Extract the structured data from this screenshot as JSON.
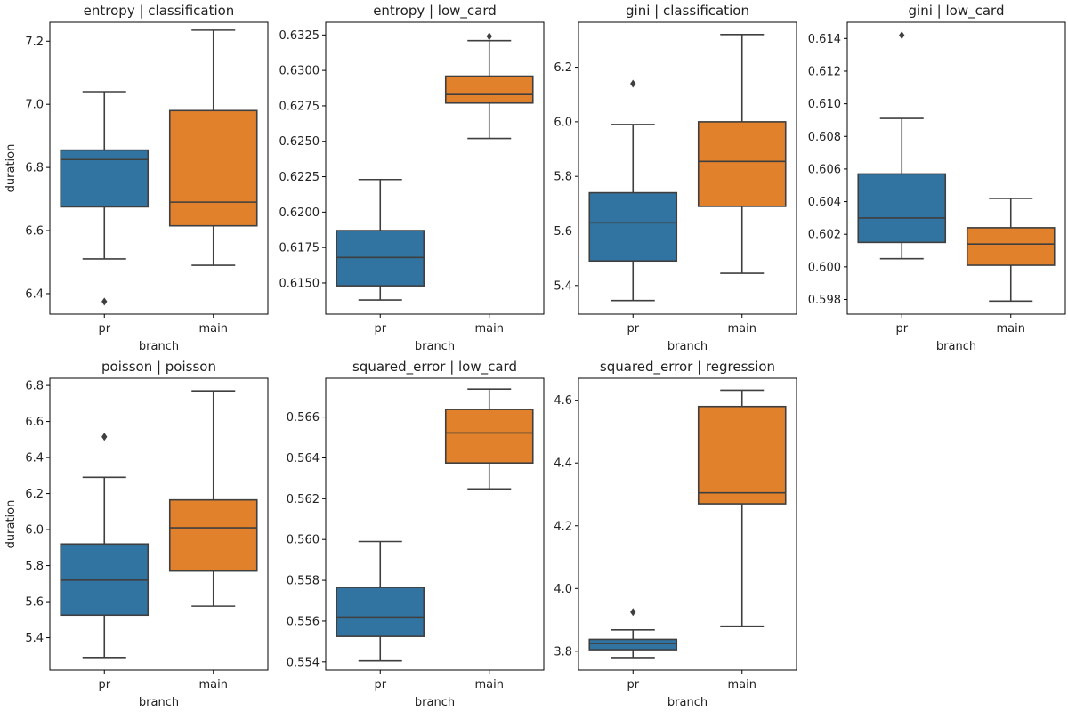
{
  "colors": {
    "pr": "#3274a1",
    "main": "#e1812c",
    "line": "#3f3f3f"
  },
  "chart_data": [
    {
      "type": "box",
      "title": "entropy | classification",
      "xlabel": "branch",
      "ylabel": "duration",
      "categories": [
        "pr",
        "main"
      ],
      "ylim": [
        6.335,
        7.26
      ],
      "yticks": [
        6.4,
        6.6,
        6.8,
        7.0,
        7.2
      ],
      "ytick_labels": [
        "6.4",
        "6.6",
        "6.8",
        "7.0",
        "7.2"
      ],
      "boxes": [
        {
          "name": "pr",
          "whislo": 6.51,
          "q1": 6.675,
          "med": 6.825,
          "q3": 6.855,
          "whishi": 7.04,
          "fliers": [
            6.375
          ]
        },
        {
          "name": "main",
          "whislo": 6.49,
          "q1": 6.615,
          "med": 6.69,
          "q3": 6.98,
          "whishi": 7.235,
          "fliers": []
        }
      ]
    },
    {
      "type": "box",
      "title": "entropy | low_card",
      "xlabel": "branch",
      "ylabel": "",
      "categories": [
        "pr",
        "main"
      ],
      "ylim": [
        0.6128,
        0.6334
      ],
      "yticks": [
        0.615,
        0.6175,
        0.62,
        0.6225,
        0.625,
        0.6275,
        0.63,
        0.6325
      ],
      "ytick_labels": [
        "0.6150",
        "0.6175",
        "0.6200",
        "0.6225",
        "0.6250",
        "0.6275",
        "0.6300",
        "0.6325"
      ],
      "boxes": [
        {
          "name": "pr",
          "whislo": 0.6138,
          "q1": 0.6148,
          "med": 0.6168,
          "q3": 0.6187,
          "whishi": 0.6223,
          "fliers": []
        },
        {
          "name": "main",
          "whislo": 0.6252,
          "q1": 0.6277,
          "med": 0.6283,
          "q3": 0.6296,
          "whishi": 0.6321,
          "fliers": [
            0.6324
          ]
        }
      ]
    },
    {
      "type": "box",
      "title": "gini | classification",
      "xlabel": "branch",
      "ylabel": "",
      "categories": [
        "pr",
        "main"
      ],
      "ylim": [
        5.295,
        6.365
      ],
      "yticks": [
        5.4,
        5.6,
        5.8,
        6.0,
        6.2
      ],
      "ytick_labels": [
        "5.4",
        "5.6",
        "5.8",
        "6.0",
        "6.2"
      ],
      "boxes": [
        {
          "name": "pr",
          "whislo": 5.345,
          "q1": 5.49,
          "med": 5.63,
          "q3": 5.74,
          "whishi": 5.99,
          "fliers": [
            6.14
          ]
        },
        {
          "name": "main",
          "whislo": 5.445,
          "q1": 5.69,
          "med": 5.855,
          "q3": 6.0,
          "whishi": 6.32,
          "fliers": []
        }
      ]
    },
    {
      "type": "box",
      "title": "gini | low_card",
      "xlabel": "branch",
      "ylabel": "",
      "categories": [
        "pr",
        "main"
      ],
      "ylim": [
        0.5971,
        0.615
      ],
      "yticks": [
        0.598,
        0.6,
        0.602,
        0.604,
        0.606,
        0.608,
        0.61,
        0.612,
        0.614
      ],
      "ytick_labels": [
        "0.598",
        "0.600",
        "0.602",
        "0.604",
        "0.606",
        "0.608",
        "0.610",
        "0.612",
        "0.614"
      ],
      "boxes": [
        {
          "name": "pr",
          "whislo": 0.6005,
          "q1": 0.6015,
          "med": 0.603,
          "q3": 0.6057,
          "whishi": 0.6091,
          "fliers": [
            0.6142
          ]
        },
        {
          "name": "main",
          "whislo": 0.5979,
          "q1": 0.6001,
          "med": 0.6014,
          "q3": 0.6024,
          "whishi": 0.6042,
          "fliers": []
        }
      ]
    },
    {
      "type": "box",
      "title": "poisson | poisson",
      "xlabel": "branch",
      "ylabel": "duration",
      "categories": [
        "pr",
        "main"
      ],
      "ylim": [
        5.22,
        6.84
      ],
      "yticks": [
        5.4,
        5.6,
        5.8,
        6.0,
        6.2,
        6.4,
        6.6,
        6.8
      ],
      "ytick_labels": [
        "5.4",
        "5.6",
        "5.8",
        "6.0",
        "6.2",
        "6.4",
        "6.6",
        "6.8"
      ],
      "boxes": [
        {
          "name": "pr",
          "whislo": 5.29,
          "q1": 5.525,
          "med": 5.72,
          "q3": 5.92,
          "whishi": 6.29,
          "fliers": [
            6.515
          ]
        },
        {
          "name": "main",
          "whislo": 5.575,
          "q1": 5.77,
          "med": 6.01,
          "q3": 6.165,
          "whishi": 6.77,
          "fliers": []
        }
      ]
    },
    {
      "type": "box",
      "title": "squared_error | low_card",
      "xlabel": "branch",
      "ylabel": "",
      "categories": [
        "pr",
        "main"
      ],
      "ylim": [
        0.5536,
        0.5679
      ],
      "yticks": [
        0.554,
        0.556,
        0.558,
        0.56,
        0.562,
        0.564,
        0.566
      ],
      "ytick_labels": [
        "0.554",
        "0.556",
        "0.558",
        "0.560",
        "0.562",
        "0.564",
        "0.566"
      ],
      "boxes": [
        {
          "name": "pr",
          "whislo": 0.55405,
          "q1": 0.55525,
          "med": 0.5562,
          "q3": 0.55765,
          "whishi": 0.5599,
          "fliers": []
        },
        {
          "name": "main",
          "whislo": 0.56248,
          "q1": 0.56375,
          "med": 0.56522,
          "q3": 0.56637,
          "whishi": 0.56737,
          "fliers": []
        }
      ]
    },
    {
      "type": "box",
      "title": "squared_error | regression",
      "xlabel": "branch",
      "ylabel": "",
      "categories": [
        "pr",
        "main"
      ],
      "ylim": [
        3.74,
        4.67
      ],
      "yticks": [
        3.8,
        4.0,
        4.2,
        4.4,
        4.6
      ],
      "ytick_labels": [
        "3.8",
        "4.0",
        "4.2",
        "4.4",
        "4.6"
      ],
      "boxes": [
        {
          "name": "pr",
          "whislo": 3.78,
          "q1": 3.805,
          "med": 3.825,
          "q3": 3.838,
          "whishi": 3.868,
          "fliers": [
            3.925
          ]
        },
        {
          "name": "main",
          "whislo": 3.88,
          "q1": 4.27,
          "med": 4.305,
          "q3": 4.58,
          "whishi": 4.632,
          "fliers": []
        }
      ]
    }
  ]
}
